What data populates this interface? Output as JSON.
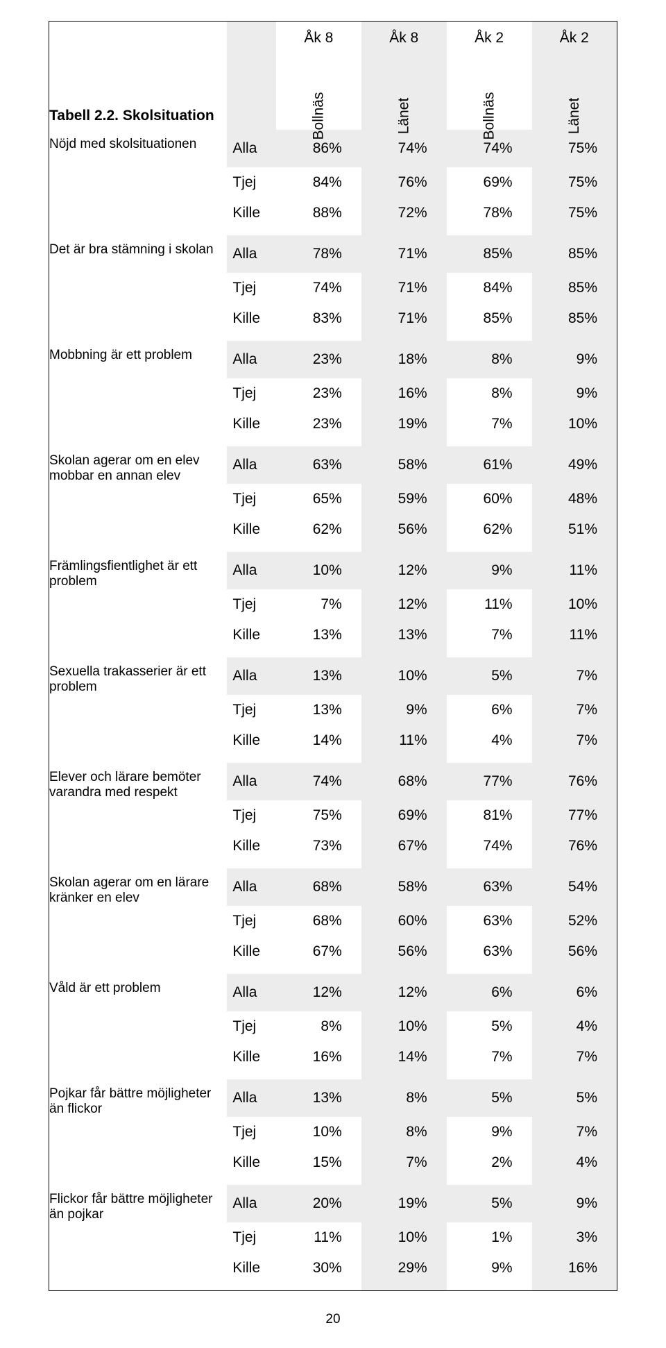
{
  "table_title_line1": "Tabell 2.2. Skolsituation",
  "header_groups": [
    "Åk 8",
    "Åk 8",
    "Åk 2",
    "Åk 2"
  ],
  "header_cols": [
    "Bollnäs",
    "Länet",
    "Bollnäs",
    "Länet"
  ],
  "group_labels": {
    "all": "Alla",
    "girl": "Tjej",
    "boy": "Kille"
  },
  "page_number": "20",
  "colors": {
    "shade": "#ececec",
    "border": "#000000",
    "text": "#000000"
  },
  "font_sizes": {
    "header": 21,
    "body": 21,
    "label": 19,
    "pagenum": 19
  },
  "questions": [
    {
      "label": "Nöjd med skolsituationen",
      "rows": {
        "Alla": [
          "86%",
          "74%",
          "74%",
          "75%"
        ],
        "Tjej": [
          "84%",
          "76%",
          "69%",
          "75%"
        ],
        "Kille": [
          "88%",
          "72%",
          "78%",
          "75%"
        ]
      }
    },
    {
      "label": "Det är bra stämning i skolan",
      "rows": {
        "Alla": [
          "78%",
          "71%",
          "85%",
          "85%"
        ],
        "Tjej": [
          "74%",
          "71%",
          "84%",
          "85%"
        ],
        "Kille": [
          "83%",
          "71%",
          "85%",
          "85%"
        ]
      }
    },
    {
      "label": "Mobbning är ett problem",
      "rows": {
        "Alla": [
          "23%",
          "18%",
          "8%",
          "9%"
        ],
        "Tjej": [
          "23%",
          "16%",
          "8%",
          "9%"
        ],
        "Kille": [
          "23%",
          "19%",
          "7%",
          "10%"
        ]
      }
    },
    {
      "label": "Skolan agerar om en elev mobbar en annan elev",
      "rows": {
        "Alla": [
          "63%",
          "58%",
          "61%",
          "49%"
        ],
        "Tjej": [
          "65%",
          "59%",
          "60%",
          "48%"
        ],
        "Kille": [
          "62%",
          "56%",
          "62%",
          "51%"
        ]
      }
    },
    {
      "label": "Främlingsfientlighet är ett problem",
      "rows": {
        "Alla": [
          "10%",
          "12%",
          "9%",
          "11%"
        ],
        "Tjej": [
          "7%",
          "12%",
          "11%",
          "10%"
        ],
        "Kille": [
          "13%",
          "13%",
          "7%",
          "11%"
        ]
      }
    },
    {
      "label": "Sexuella trakasserier är ett problem",
      "rows": {
        "Alla": [
          "13%",
          "10%",
          "5%",
          "7%"
        ],
        "Tjej": [
          "13%",
          "9%",
          "6%",
          "7%"
        ],
        "Kille": [
          "14%",
          "11%",
          "4%",
          "7%"
        ]
      }
    },
    {
      "label": "Elever och lärare bemöter varandra med respekt",
      "rows": {
        "Alla": [
          "74%",
          "68%",
          "77%",
          "76%"
        ],
        "Tjej": [
          "75%",
          "69%",
          "81%",
          "77%"
        ],
        "Kille": [
          "73%",
          "67%",
          "74%",
          "76%"
        ]
      }
    },
    {
      "label": "Skolan agerar om en lärare kränker en elev",
      "rows": {
        "Alla": [
          "68%",
          "58%",
          "63%",
          "54%"
        ],
        "Tjej": [
          "68%",
          "60%",
          "63%",
          "52%"
        ],
        "Kille": [
          "67%",
          "56%",
          "63%",
          "56%"
        ]
      }
    },
    {
      "label": "Våld är ett problem",
      "rows": {
        "Alla": [
          "12%",
          "12%",
          "6%",
          "6%"
        ],
        "Tjej": [
          "8%",
          "10%",
          "5%",
          "4%"
        ],
        "Kille": [
          "16%",
          "14%",
          "7%",
          "7%"
        ]
      }
    },
    {
      "label": "Pojkar får bättre möjligheter än flickor",
      "rows": {
        "Alla": [
          "13%",
          "8%",
          "5%",
          "5%"
        ],
        "Tjej": [
          "10%",
          "8%",
          "9%",
          "7%"
        ],
        "Kille": [
          "15%",
          "7%",
          "2%",
          "4%"
        ]
      }
    },
    {
      "label": "Flickor får bättre möjligheter än pojkar",
      "rows": {
        "Alla": [
          "20%",
          "19%",
          "5%",
          "9%"
        ],
        "Tjej": [
          "11%",
          "10%",
          "1%",
          "3%"
        ],
        "Kille": [
          "30%",
          "29%",
          "9%",
          "16%"
        ]
      }
    }
  ]
}
